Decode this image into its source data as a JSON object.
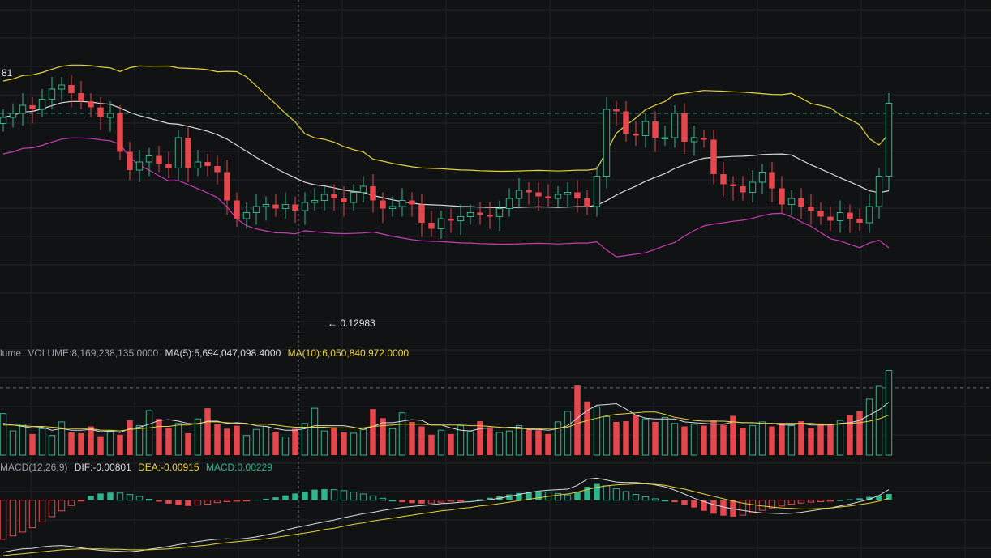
{
  "colors": {
    "background": "#111214",
    "grid": "#1f2227",
    "up": "#2fb58c",
    "down": "#e5474f",
    "ma_fast": "#d9d9d9",
    "boll_upper": "#e3d23a",
    "boll_lower": "#c93ab4",
    "dif": "#d9d9d9",
    "dea": "#e3d23a",
    "crosshair": "#6b6f78",
    "ref_line": "#2fb58c"
  },
  "labels": {
    "price_partial": "81",
    "low_marker": "← 0.12983"
  },
  "volume_legend": {
    "name": "lume",
    "volume": "VOLUME:8,169,238,135.0000",
    "ma5": "MA(5):5,694,047,098.4000",
    "ma10": "MA(10):6,050,840,972.0000"
  },
  "macd_legend": {
    "name": "MACD(12,26,9)",
    "dif": "DIF:-0.00801",
    "dea": "DEA:-0.00915",
    "macd": "MACD:0.00229"
  },
  "chart_data": [
    {
      "type": "candlestick",
      "panel": "price",
      "candle_count": 92,
      "close": [
        0.1396,
        0.1398,
        0.1402,
        0.14,
        0.1405,
        0.141,
        0.1412,
        0.1408,
        0.1404,
        0.1401,
        0.1396,
        0.1398,
        0.1379,
        0.137,
        0.1374,
        0.1377,
        0.1373,
        0.1371,
        0.1386,
        0.1371,
        0.1374,
        0.1372,
        0.1369,
        0.1355,
        0.1346,
        0.1349,
        0.1352,
        0.1353,
        0.1351,
        0.1353,
        0.135,
        0.1354,
        0.1355,
        0.1358,
        0.1356,
        0.1354,
        0.1359,
        0.1362,
        0.1355,
        0.1351,
        0.1352,
        0.1355,
        0.1353,
        0.1344,
        0.1341,
        0.1346,
        0.1345,
        0.1347,
        0.1349,
        0.1348,
        0.1347,
        0.1351,
        0.1356,
        0.136,
        0.1359,
        0.1357,
        0.1356,
        0.1358,
        0.1359,
        0.1356,
        0.1352,
        0.1367,
        0.14,
        0.1399,
        0.1388,
        0.1387,
        0.1394,
        0.1386,
        0.1386,
        0.1398,
        0.1384,
        0.1386,
        0.1385,
        0.1368,
        0.1363,
        0.1362,
        0.1359,
        0.1364,
        0.1369,
        0.1361,
        0.1353,
        0.1356,
        0.1352,
        0.135,
        0.1347,
        0.1345,
        0.1349,
        0.1346,
        0.1344,
        0.1352,
        0.1367,
        0.1403
      ],
      "y_reference": 0.1398,
      "low_marker": 0.12983
    },
    {
      "type": "bar",
      "panel": "volume",
      "series": [
        {
          "name": "VOLUME",
          "values": [
            5.5,
            3.2,
            4.1,
            2.8,
            3.5,
            2.6,
            4.4,
            3.0,
            2.9,
            3.8,
            2.5,
            3.1,
            2.7,
            4.6,
            3.9,
            5.9,
            4.8,
            3.6,
            4.2,
            2.9,
            4.8,
            6.2,
            4.1,
            3.5,
            3.9,
            2.6,
            3.4,
            3.8,
            3.1,
            2.4,
            3.5,
            4.2,
            6.2,
            3.2,
            3.7,
            3.0,
            2.9,
            3.4,
            6.1,
            4.9,
            3.5,
            5.6,
            4.4,
            3.8,
            2.7,
            3.3,
            2.8,
            3.9,
            3.1,
            4.5,
            3.7,
            3.0,
            3.2,
            3.9,
            3.4,
            3.3,
            2.8,
            4.4,
            5.8,
            9.2,
            7.1,
            6.4,
            5.1,
            4.4,
            4.5,
            5.3,
            4.8,
            4.4,
            5.0,
            4.2,
            3.8,
            4.1,
            3.9,
            4.6,
            4.0,
            5.2,
            3.6,
            3.9,
            4.4,
            3.8,
            4.2,
            3.9,
            4.5,
            3.6,
            4.2,
            4.0,
            4.6,
            5.3,
            5.8,
            7.4,
            9.1,
            11.2
          ]
        },
        {
          "name": "MA(5)",
          "values": [
            4.2,
            4.0,
            3.8,
            3.6,
            3.7,
            3.3,
            3.5,
            3.3,
            3.3,
            3.4,
            3.1,
            3.2,
            3.0,
            3.5,
            3.7,
            4.1,
            4.6,
            4.7,
            4.5,
            4.2,
            4.1,
            4.5,
            4.5,
            4.2,
            4.3,
            4.2,
            3.9,
            3.8,
            3.5,
            3.3,
            3.3,
            3.5,
            3.9,
            3.9,
            3.9,
            3.9,
            3.7,
            3.4,
            3.8,
            4.3,
            4.3,
            4.5,
            4.7,
            4.6,
            4.0,
            4.0,
            3.6,
            3.3,
            3.2,
            3.5,
            3.6,
            3.6,
            3.7,
            3.7,
            3.4,
            3.4,
            3.3,
            3.5,
            3.9,
            4.9,
            5.9,
            6.6,
            6.7,
            6.8,
            6.1,
            5.3,
            4.9,
            4.8,
            4.8,
            4.8,
            4.4,
            4.3,
            4.2,
            4.1,
            4.1,
            4.4,
            4.3,
            4.3,
            4.2,
            4.2,
            4.0,
            4.0,
            4.2,
            4.0,
            4.0,
            4.0,
            4.2,
            4.3,
            4.6,
            5.3,
            6.0,
            7.0
          ]
        },
        {
          "name": "MA(10)",
          "values": [
            4.0,
            4.0,
            3.9,
            3.8,
            3.8,
            3.7,
            3.6,
            3.5,
            3.5,
            3.5,
            3.3,
            3.3,
            3.2,
            3.4,
            3.5,
            3.6,
            3.8,
            3.8,
            4.0,
            4.0,
            4.2,
            4.4,
            4.4,
            4.3,
            4.2,
            4.1,
            4.1,
            4.1,
            4.0,
            3.8,
            3.7,
            3.7,
            3.7,
            3.7,
            3.6,
            3.6,
            3.6,
            3.6,
            3.8,
            3.9,
            4.0,
            4.1,
            4.1,
            4.1,
            4.0,
            4.0,
            4.0,
            4.0,
            3.9,
            3.9,
            3.8,
            3.7,
            3.6,
            3.5,
            3.5,
            3.5,
            3.5,
            3.6,
            3.7,
            4.2,
            4.6,
            4.9,
            5.2,
            5.4,
            5.5,
            5.6,
            5.7,
            5.7,
            5.4,
            5.0,
            4.8,
            4.6,
            4.5,
            4.5,
            4.5,
            4.4,
            4.3,
            4.3,
            4.2,
            4.2,
            4.2,
            4.2,
            4.2,
            4.2,
            4.1,
            4.1,
            4.1,
            4.2,
            4.3,
            4.5,
            4.8,
            5.3
          ]
        }
      ],
      "y_reference": 8.9
    },
    {
      "type": "bar",
      "panel": "macd",
      "series": [
        {
          "name": "MACD",
          "values": [
            -0.0081,
            -0.0074,
            -0.0066,
            -0.0057,
            -0.0045,
            -0.0034,
            -0.0022,
            -0.0011,
            -0.0001,
            0.0009,
            0.0014,
            0.0016,
            0.0015,
            0.0012,
            0.0008,
            0.0002,
            -0.0003,
            -0.0007,
            -0.001,
            -0.0012,
            -0.001,
            -0.0008,
            -0.0005,
            -0.0003,
            -0.0002,
            -0.0001,
            0.0001,
            0.0003,
            0.0006,
            0.001,
            0.0014,
            0.0018,
            0.0022,
            0.0023,
            0.0022,
            0.002,
            0.0017,
            0.0013,
            0.0009,
            0.0004,
            0.0,
            -0.0004,
            -0.0006,
            -0.0007,
            -0.0006,
            -0.0004,
            -0.0002,
            -0.0001,
            0.0001,
            0.0002,
            0.0005,
            0.0008,
            0.0012,
            0.0015,
            0.0017,
            0.0018,
            0.0017,
            0.0014,
            0.0011,
            0.0017,
            0.0028,
            0.0034,
            0.003,
            0.0024,
            0.0018,
            0.0012,
            0.0007,
            0.0003,
            0.0,
            -0.0004,
            -0.0009,
            -0.0015,
            -0.0022,
            -0.0028,
            -0.0032,
            -0.0034,
            -0.0031,
            -0.0026,
            -0.0021,
            -0.0016,
            -0.0012,
            -0.0008,
            -0.0006,
            -0.0004,
            -0.0003,
            -0.0002,
            0.0,
            0.0002,
            0.0004,
            0.0007,
            0.001,
            0.0013
          ]
        },
        {
          "name": "DIF",
          "values": [
            -0.0108,
            -0.0104,
            -0.0101,
            -0.01,
            -0.0097,
            -0.0095,
            -0.0094,
            -0.0096,
            -0.0099,
            -0.0102,
            -0.0104,
            -0.0105,
            -0.0106,
            -0.0107,
            -0.0105,
            -0.0102,
            -0.0099,
            -0.0096,
            -0.0092,
            -0.0089,
            -0.0086,
            -0.0083,
            -0.0081,
            -0.008,
            -0.0081,
            -0.0079,
            -0.0076,
            -0.0072,
            -0.0068,
            -0.0062,
            -0.0057,
            -0.0053,
            -0.0049,
            -0.0045,
            -0.0041,
            -0.0036,
            -0.0032,
            -0.0028,
            -0.0025,
            -0.0021,
            -0.0018,
            -0.0015,
            -0.0013,
            -0.0011,
            -0.0009,
            -0.0007,
            -0.0006,
            -0.0004,
            -0.0003,
            -0.0001,
            0.0001,
            0.0004,
            0.0008,
            0.0012,
            0.0016,
            0.0019,
            0.0021,
            0.0022,
            0.0023,
            0.0031,
            0.0044,
            0.0046,
            0.0042,
            0.0038,
            0.0037,
            0.0037,
            0.0035,
            0.0032,
            0.0028,
            0.0021,
            0.0013,
            0.0004,
            -0.0003,
            -0.0009,
            -0.0014,
            -0.0018,
            -0.0021,
            -0.0024,
            -0.0026,
            -0.0027,
            -0.0028,
            -0.0027,
            -0.0025,
            -0.0022,
            -0.0019,
            -0.0016,
            -0.0012,
            -0.0008,
            -0.0003,
            0.0002,
            0.001,
            0.0022
          ]
        },
        {
          "name": "DEA",
          "values": [
            -0.0115,
            -0.0113,
            -0.0111,
            -0.0109,
            -0.0107,
            -0.0105,
            -0.0103,
            -0.0102,
            -0.0101,
            -0.0101,
            -0.0101,
            -0.0102,
            -0.0102,
            -0.0103,
            -0.0103,
            -0.0103,
            -0.0102,
            -0.0101,
            -0.0099,
            -0.0097,
            -0.0095,
            -0.0093,
            -0.009,
            -0.0088,
            -0.0086,
            -0.0084,
            -0.0082,
            -0.008,
            -0.0077,
            -0.0074,
            -0.0071,
            -0.0068,
            -0.0065,
            -0.0061,
            -0.0058,
            -0.0054,
            -0.005,
            -0.0047,
            -0.0043,
            -0.004,
            -0.0037,
            -0.0034,
            -0.0031,
            -0.0028,
            -0.0025,
            -0.0022,
            -0.002,
            -0.0017,
            -0.0015,
            -0.0012,
            -0.001,
            -0.0007,
            -0.0004,
            -0.0001,
            0.0002,
            0.0005,
            0.0008,
            0.0011,
            0.0013,
            0.0017,
            0.0022,
            0.0027,
            0.003,
            0.0032,
            0.0033,
            0.0034,
            0.0034,
            0.0033,
            0.0031,
            0.0027,
            0.0023,
            0.0018,
            0.0013,
            0.0008,
            0.0003,
            -0.0002,
            -0.0006,
            -0.0009,
            -0.0012,
            -0.0014,
            -0.0016,
            -0.0017,
            -0.0018,
            -0.0018,
            -0.0017,
            -0.0016,
            -0.0014,
            -0.0012,
            -0.0009,
            -0.0006,
            -0.0002,
            0.0004
          ]
        }
      ]
    }
  ]
}
